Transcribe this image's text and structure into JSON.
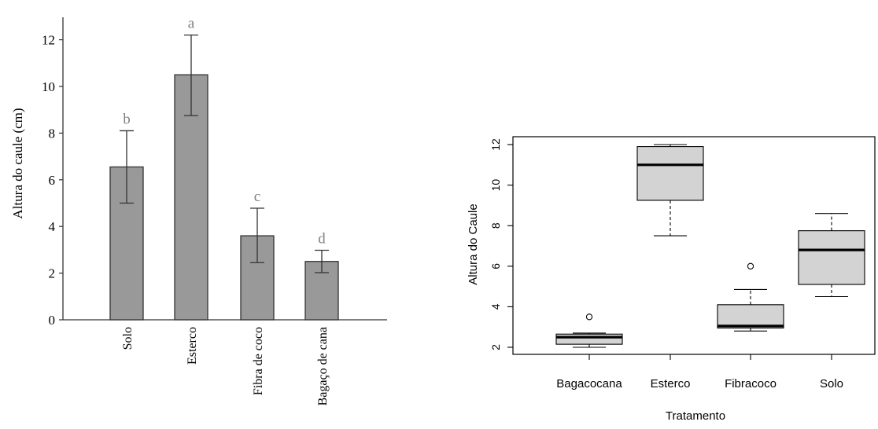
{
  "chart_data": [
    {
      "type": "bar",
      "ylabel": "Altura do caule (cm)",
      "categories": [
        "Solo",
        "Esterco",
        "Fibra de coco",
        "Bagaço de cana"
      ],
      "values": [
        6.55,
        10.5,
        3.6,
        2.5
      ],
      "error_low": [
        5.0,
        8.75,
        2.45,
        2.02
      ],
      "error_high": [
        8.1,
        12.2,
        4.78,
        2.98
      ],
      "significance_letters": [
        "b",
        "a",
        "c",
        "d"
      ],
      "ylim": [
        0,
        13
      ],
      "yticks": [
        "0",
        "2",
        "4",
        "6",
        "8",
        "10",
        "12"
      ],
      "bar_color": "#999999",
      "letter_color": "#808080"
    },
    {
      "type": "boxplot",
      "xlabel": "Tratamento",
      "ylabel": "Altura do Caule",
      "categories": [
        "Bagacocana",
        "Esterco",
        "Fibracoco",
        "Solo"
      ],
      "boxes": [
        {
          "whisker_low": 2.0,
          "q1": 2.15,
          "median": 2.5,
          "q3": 2.65,
          "whisker_high": 2.7,
          "outliers": [
            3.5
          ]
        },
        {
          "whisker_low": 7.5,
          "q1": 9.25,
          "median": 11.0,
          "q3": 11.9,
          "whisker_high": 12.0,
          "outliers": []
        },
        {
          "whisker_low": 2.8,
          "q1": 2.95,
          "median": 3.05,
          "q3": 4.1,
          "whisker_high": 4.85,
          "outliers": [
            6.0
          ]
        },
        {
          "whisker_low": 4.5,
          "q1": 5.1,
          "median": 6.8,
          "q3": 7.75,
          "whisker_high": 8.6,
          "outliers": []
        }
      ],
      "ylim": [
        1.6,
        12.6
      ],
      "yticks": [
        "2",
        "4",
        "6",
        "8",
        "10",
        "12"
      ],
      "box_color": "#d3d3d3"
    }
  ]
}
